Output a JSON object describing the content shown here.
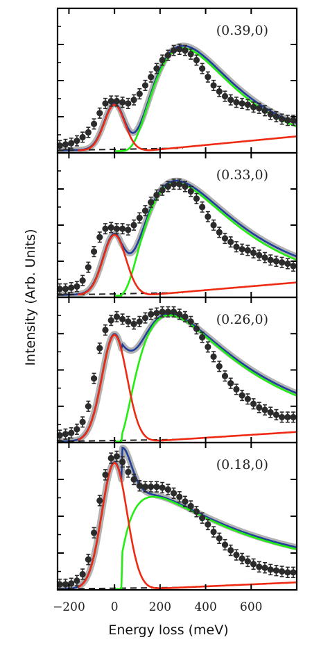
{
  "chart_data": {
    "type": "line",
    "xlabel": "Energy loss (meV)",
    "ylabel": "Intensity (Arb. Units)",
    "xlim": [
      -250,
      800
    ],
    "x_ticks": [
      -200,
      0,
      200,
      400,
      600
    ],
    "x_tick_labels": [
      "−200",
      "0",
      "200",
      "400",
      "600"
    ],
    "grid": false,
    "legend": "none",
    "colors": {
      "data": "#2b2b2b",
      "total_fit": "#1f3f9a",
      "total_band": "#9a9a9a",
      "elastic": "#ee2a12",
      "magnon": "#22ee11",
      "background": "#222222"
    },
    "panels": [
      {
        "label": "(0.39,0)",
        "ylim": [
          0,
          1.2
        ],
        "elastic": {
          "amp": 0.38,
          "center": 0,
          "sigma": 45
        },
        "magnon": {
          "amp": 0.85,
          "center": 300,
          "width": 170
        },
        "background": {
          "start": 0.02,
          "slope": 3.5e-05
        },
        "rise": {
          "start": 0.02,
          "slope": 0.00018,
          "onset": 150
        },
        "points": [
          [
            -240,
            0.06
          ],
          [
            -215,
            0.07
          ],
          [
            -190,
            0.08
          ],
          [
            -165,
            0.1
          ],
          [
            -140,
            0.13
          ],
          [
            -115,
            0.17
          ],
          [
            -90,
            0.24
          ],
          [
            -65,
            0.33
          ],
          [
            -40,
            0.41
          ],
          [
            -15,
            0.43
          ],
          [
            10,
            0.43
          ],
          [
            35,
            0.42
          ],
          [
            60,
            0.41
          ],
          [
            85,
            0.44
          ],
          [
            110,
            0.49
          ],
          [
            135,
            0.56
          ],
          [
            160,
            0.63
          ],
          [
            185,
            0.7
          ],
          [
            210,
            0.77
          ],
          [
            235,
            0.81
          ],
          [
            260,
            0.85
          ],
          [
            285,
            0.86
          ],
          [
            310,
            0.85
          ],
          [
            335,
            0.82
          ],
          [
            360,
            0.77
          ],
          [
            385,
            0.7
          ],
          [
            410,
            0.63
          ],
          [
            435,
            0.56
          ],
          [
            460,
            0.51
          ],
          [
            485,
            0.47
          ],
          [
            510,
            0.44
          ],
          [
            535,
            0.42
          ],
          [
            560,
            0.41
          ],
          [
            585,
            0.4
          ],
          [
            610,
            0.38
          ],
          [
            635,
            0.37
          ],
          [
            660,
            0.35
          ],
          [
            685,
            0.32
          ],
          [
            710,
            0.3
          ],
          [
            735,
            0.28
          ],
          [
            760,
            0.27
          ],
          [
            785,
            0.27
          ]
        ]
      },
      {
        "label": "(0.33,0)",
        "ylim": [
          0,
          1.2
        ],
        "elastic": {
          "amp": 0.5,
          "center": 0,
          "sigma": 50
        },
        "magnon": {
          "amp": 0.93,
          "center": 270,
          "width": 190
        },
        "background": {
          "start": 0.02,
          "slope": 3.5e-05
        },
        "rise": {
          "start": 0.02,
          "slope": 0.00016,
          "onset": 150
        },
        "points": [
          [
            -240,
            0.07
          ],
          [
            -215,
            0.07
          ],
          [
            -190,
            0.08
          ],
          [
            -165,
            0.09
          ],
          [
            -140,
            0.14
          ],
          [
            -115,
            0.25
          ],
          [
            -90,
            0.38
          ],
          [
            -65,
            0.5
          ],
          [
            -40,
            0.57
          ],
          [
            -15,
            0.58
          ],
          [
            10,
            0.57
          ],
          [
            35,
            0.57
          ],
          [
            60,
            0.56
          ],
          [
            85,
            0.6
          ],
          [
            110,
            0.66
          ],
          [
            135,
            0.72
          ],
          [
            160,
            0.79
          ],
          [
            185,
            0.85
          ],
          [
            210,
            0.89
          ],
          [
            235,
            0.92
          ],
          [
            260,
            0.94
          ],
          [
            285,
            0.94
          ],
          [
            310,
            0.92
          ],
          [
            335,
            0.88
          ],
          [
            360,
            0.82
          ],
          [
            385,
            0.75
          ],
          [
            410,
            0.67
          ],
          [
            435,
            0.6
          ],
          [
            460,
            0.54
          ],
          [
            485,
            0.49
          ],
          [
            510,
            0.46
          ],
          [
            535,
            0.42
          ],
          [
            560,
            0.4
          ],
          [
            585,
            0.39
          ],
          [
            610,
            0.37
          ],
          [
            635,
            0.35
          ],
          [
            660,
            0.33
          ],
          [
            685,
            0.31
          ],
          [
            710,
            0.3
          ],
          [
            735,
            0.29
          ],
          [
            760,
            0.28
          ],
          [
            785,
            0.26
          ]
        ]
      },
      {
        "label": "(0.26,0)",
        "ylim": [
          0,
          1.2
        ],
        "elastic": {
          "amp": 0.88,
          "center": 0,
          "sigma": 55
        },
        "magnon": {
          "amp": 1.04,
          "center": 240,
          "width": 200
        },
        "background": {
          "start": 0.01,
          "slope": 3e-05
        },
        "rise": {
          "start": 0.01,
          "slope": 0.00012,
          "onset": 150
        },
        "points": [
          [
            -240,
            0.06
          ],
          [
            -215,
            0.07
          ],
          [
            -190,
            0.08
          ],
          [
            -165,
            0.11
          ],
          [
            -140,
            0.17
          ],
          [
            -115,
            0.3
          ],
          [
            -90,
            0.53
          ],
          [
            -65,
            0.78
          ],
          [
            -40,
            0.93
          ],
          [
            -15,
            1.01
          ],
          [
            10,
            1.04
          ],
          [
            35,
            1.02
          ],
          [
            60,
            1.0
          ],
          [
            85,
            0.98
          ],
          [
            110,
            1.0
          ],
          [
            135,
            1.03
          ],
          [
            160,
            1.06
          ],
          [
            185,
            1.07
          ],
          [
            210,
            1.08
          ],
          [
            235,
            1.08
          ],
          [
            260,
            1.08
          ],
          [
            285,
            1.06
          ],
          [
            310,
            1.04
          ],
          [
            335,
            1.0
          ],
          [
            360,
            0.94
          ],
          [
            385,
            0.87
          ],
          [
            410,
            0.79
          ],
          [
            435,
            0.71
          ],
          [
            460,
            0.63
          ],
          [
            485,
            0.55
          ],
          [
            510,
            0.49
          ],
          [
            535,
            0.44
          ],
          [
            560,
            0.39
          ],
          [
            585,
            0.36
          ],
          [
            610,
            0.32
          ],
          [
            635,
            0.29
          ],
          [
            660,
            0.27
          ],
          [
            685,
            0.25
          ],
          [
            710,
            0.23
          ],
          [
            735,
            0.21
          ],
          [
            760,
            0.21
          ],
          [
            785,
            0.21
          ]
        ]
      },
      {
        "label": "(0.18,0)",
        "ylim": [
          0,
          1.6
        ],
        "elastic": {
          "amp": 1.37,
          "center": 0,
          "sigma": 55
        },
        "magnon": {
          "amp": 1.0,
          "center": 170,
          "width": 200
        },
        "background": {
          "start": 0.01,
          "slope": 3e-05
        },
        "rise": {
          "start": 0.01,
          "slope": 0.00011,
          "onset": 150
        },
        "points": [
          [
            -240,
            0.06
          ],
          [
            -215,
            0.06
          ],
          [
            -190,
            0.07
          ],
          [
            -165,
            0.1
          ],
          [
            -140,
            0.17
          ],
          [
            -115,
            0.33
          ],
          [
            -90,
            0.62
          ],
          [
            -65,
            0.97
          ],
          [
            -40,
            1.25
          ],
          [
            -15,
            1.43
          ],
          [
            10,
            1.45
          ],
          [
            35,
            1.39
          ],
          [
            60,
            1.28
          ],
          [
            85,
            1.2
          ],
          [
            110,
            1.13
          ],
          [
            135,
            1.12
          ],
          [
            160,
            1.12
          ],
          [
            185,
            1.12
          ],
          [
            210,
            1.11
          ],
          [
            235,
            1.09
          ],
          [
            260,
            1.05
          ],
          [
            285,
            1.01
          ],
          [
            310,
            0.96
          ],
          [
            335,
            0.91
          ],
          [
            360,
            0.85
          ],
          [
            385,
            0.78
          ],
          [
            410,
            0.71
          ],
          [
            435,
            0.63
          ],
          [
            460,
            0.56
          ],
          [
            485,
            0.49
          ],
          [
            510,
            0.43
          ],
          [
            535,
            0.38
          ],
          [
            560,
            0.34
          ],
          [
            585,
            0.31
          ],
          [
            610,
            0.28
          ],
          [
            635,
            0.25
          ],
          [
            660,
            0.24
          ],
          [
            685,
            0.22
          ],
          [
            710,
            0.21
          ],
          [
            735,
            0.2
          ],
          [
            760,
            0.19
          ],
          [
            785,
            0.19
          ]
        ]
      }
    ]
  }
}
